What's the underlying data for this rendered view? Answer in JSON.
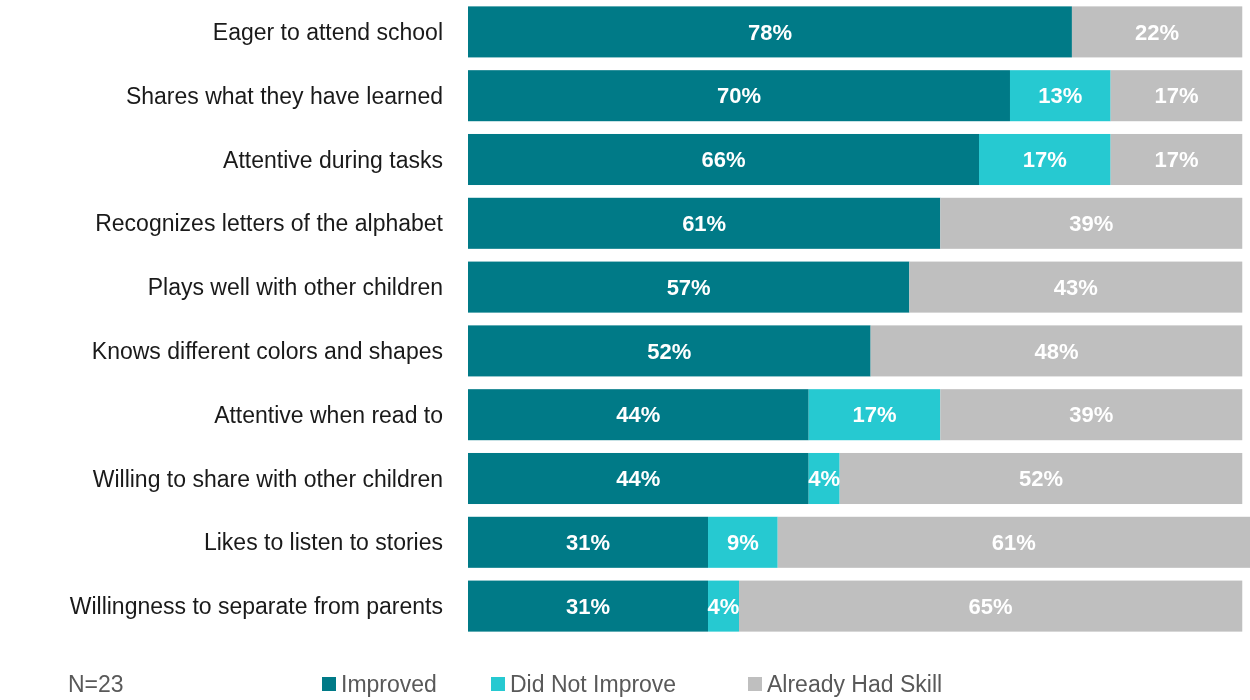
{
  "chart_data": {
    "type": "bar",
    "orientation": "horizontal",
    "stacked": true,
    "legend": "bottom",
    "tick_labels": "y",
    "grid": false,
    "categories": [
      "Eager to attend school",
      "Shares what they have learned",
      "Attentive during tasks",
      "Recognizes letters of the alphabet",
      "Plays well with other children",
      "Knows different colors and shapes",
      "Attentive when read to",
      "Willing to share with other children",
      "Likes to listen to stories",
      "Willingness to separate from parents"
    ],
    "series": [
      {
        "name": "Improved",
        "color": "#007a87",
        "values": [
          78,
          70,
          66,
          61,
          57,
          52,
          44,
          44,
          31,
          31
        ],
        "value_labels": [
          "78%",
          "70%",
          "66%",
          "61%",
          "57%",
          "52%",
          "44%",
          "44%",
          "31%",
          "31%"
        ]
      },
      {
        "name": "Did Not Improve",
        "color": "#26c9d1",
        "values": [
          null,
          13,
          17,
          null,
          null,
          null,
          17,
          4,
          9,
          4
        ],
        "value_labels": [
          null,
          "13%",
          "17%",
          null,
          null,
          null,
          "17%",
          "4%",
          "9%",
          "4%"
        ]
      },
      {
        "name": "Already Had Skill",
        "color": "#bfbfbf",
        "values": [
          22,
          17,
          17,
          39,
          43,
          48,
          39,
          52,
          61,
          65
        ],
        "value_labels": [
          "22%",
          "17%",
          "17%",
          "39%",
          "43%",
          "48%",
          "39%",
          "52%",
          "61%",
          "65%"
        ]
      }
    ],
    "annotations": [
      "N=23"
    ]
  }
}
